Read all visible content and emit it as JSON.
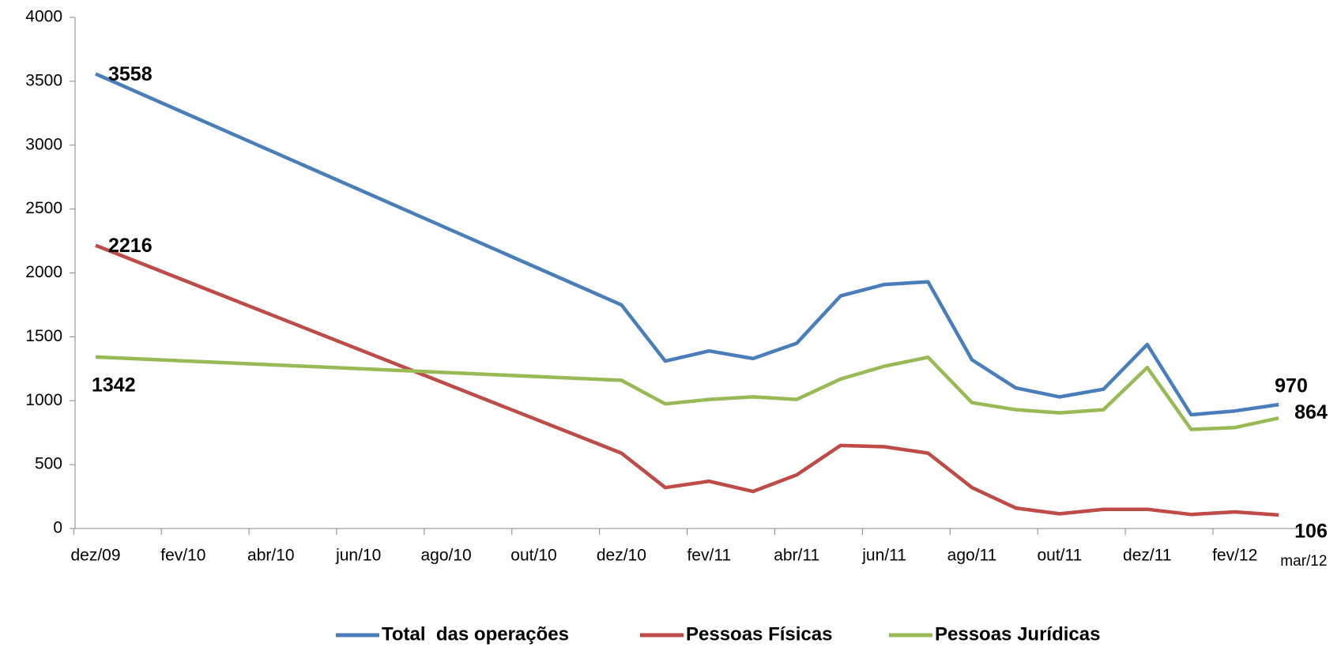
{
  "chart_data": {
    "type": "line",
    "categories": [
      "dez/09",
      null,
      "fev/10",
      null,
      "abr/10",
      null,
      "jun/10",
      null,
      "ago/10",
      null,
      "out/10",
      null,
      "dez/10",
      null,
      "fev/11",
      null,
      "abr/11",
      null,
      "jun/11",
      null,
      "ago/11",
      null,
      "out/11",
      null,
      "dez/11",
      null,
      "fev/12",
      "mar/12"
    ],
    "series": [
      {
        "name": "Total  das operações",
        "color": "#4a7ebb",
        "values": [
          3558,
          null,
          null,
          null,
          null,
          null,
          null,
          null,
          null,
          null,
          null,
          null,
          1750,
          1310,
          1390,
          1330,
          1450,
          1820,
          1910,
          1930,
          1320,
          1100,
          1030,
          1090,
          1440,
          890,
          920,
          970
        ]
      },
      {
        "name": "Pessoas Físicas",
        "color": "#be4b48",
        "values": [
          2216,
          null,
          null,
          null,
          null,
          null,
          null,
          null,
          null,
          null,
          null,
          null,
          590,
          320,
          370,
          290,
          420,
          650,
          640,
          590,
          320,
          160,
          115,
          150,
          150,
          110,
          130,
          106
        ]
      },
      {
        "name": "Pessoas Jurídicas",
        "color": "#98b954",
        "values": [
          1342,
          null,
          null,
          null,
          null,
          null,
          null,
          null,
          null,
          null,
          null,
          null,
          1160,
          975,
          1010,
          1030,
          1010,
          1170,
          1270,
          1340,
          985,
          930,
          905,
          930,
          1260,
          775,
          790,
          864
        ]
      }
    ],
    "span_gaps": true,
    "ylim": [
      0,
      4000
    ],
    "yticks": [
      0,
      500,
      1000,
      1500,
      2000,
      2500,
      3000,
      3500,
      4000
    ],
    "grid": false,
    "legend": "bottom"
  }
}
